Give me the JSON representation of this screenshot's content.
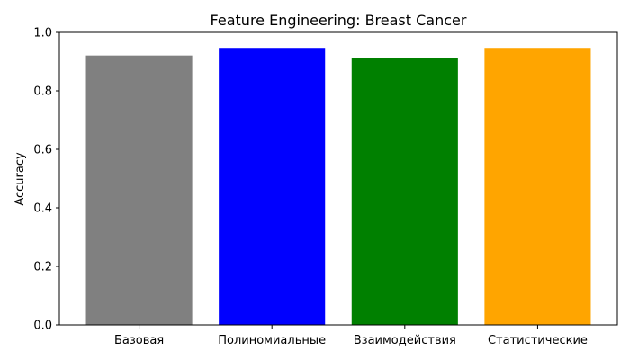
{
  "chart_data": {
    "type": "bar",
    "title": "Feature Engineering: Breast Cancer",
    "xlabel": "",
    "ylabel": "Accuracy",
    "categories": [
      "Базовая",
      "Полиномиальные",
      "Взаимодействия",
      "Статистические"
    ],
    "values": [
      0.921,
      0.947,
      0.912,
      0.947
    ],
    "colors": [
      "#808080",
      "#0000ff",
      "#008000",
      "#ffa500"
    ],
    "ylim": [
      0,
      1.0
    ],
    "yticks": [
      "0.0",
      "0.2",
      "0.4",
      "0.6",
      "0.8",
      "1.0"
    ],
    "grid": false,
    "legend": "none"
  }
}
